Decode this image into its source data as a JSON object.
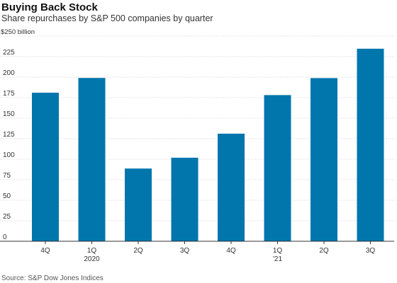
{
  "header": {
    "title": "Buying Back Stock",
    "subtitle": "Share repurchases by S&P 500 companies by quarter"
  },
  "footer": {
    "source": "Source: S&P Dow Jones Indices"
  },
  "colors": {
    "bar": "#0076ad",
    "grid": "#d7d7d7",
    "axis": "#333333"
  },
  "chart_data": {
    "type": "bar",
    "title": "Buying Back Stock",
    "subtitle": "Share repurchases by S&P 500 companies by quarter",
    "ylabel": "",
    "y_top_label": "$250 billion",
    "ylim": [
      0,
      250
    ],
    "yticks": [
      0,
      25,
      50,
      75,
      100,
      125,
      150,
      175,
      200,
      225
    ],
    "grid": true,
    "categories": [
      "4Q",
      "1Q",
      "2Q",
      "3Q",
      "4Q",
      "1Q",
      "2Q",
      "3Q"
    ],
    "category_sublabels": [
      "",
      "2020",
      "",
      "",
      "",
      "'21",
      "",
      ""
    ],
    "values": [
      181.0,
      199.0,
      88.6,
      101.8,
      131.1,
      178.1,
      198.8,
      234.6
    ]
  }
}
